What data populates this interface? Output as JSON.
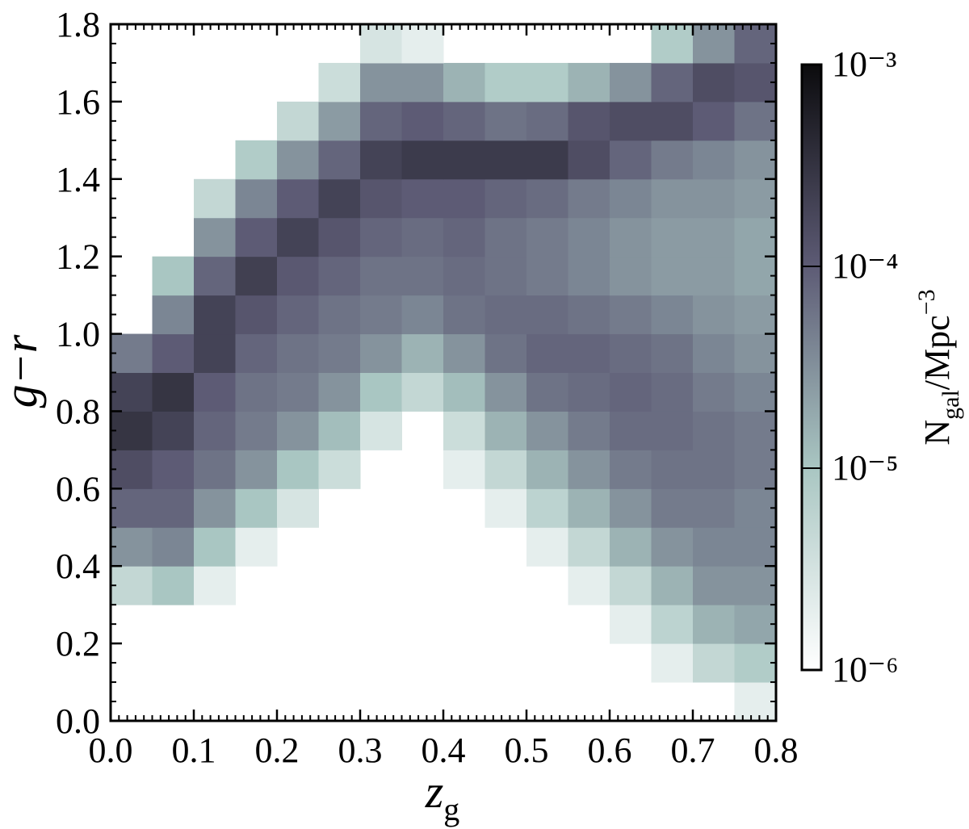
{
  "chart_data": {
    "type": "heatmap",
    "xlabel": {
      "text": "z",
      "sub": "g"
    },
    "ylabel": "g−r",
    "colorbar_label": {
      "main": "N",
      "sub": "gal",
      "mid": "/Mpc",
      "sup": "−3"
    },
    "x_bins": [
      0,
      0.05,
      0.1,
      0.15,
      0.2,
      0.25,
      0.3,
      0.35,
      0.4,
      0.45,
      0.5,
      0.55,
      0.6,
      0.65,
      0.7,
      0.75,
      0.8
    ],
    "y_bins": [
      0,
      0.1,
      0.2,
      0.3,
      0.4,
      0.5,
      0.6,
      0.7,
      0.8,
      0.9,
      1.0,
      1.1,
      1.2,
      1.3,
      1.4,
      1.5,
      1.6,
      1.7,
      1.8
    ],
    "values": [
      [
        null,
        null,
        null,
        null,
        null,
        null,
        null,
        null,
        null,
        null,
        null,
        null,
        null,
        null,
        null,
        2e-06
      ],
      [
        null,
        null,
        null,
        null,
        null,
        null,
        null,
        null,
        null,
        null,
        null,
        null,
        null,
        2e-06,
        5e-06,
        8e-06
      ],
      [
        null,
        null,
        null,
        null,
        null,
        null,
        null,
        null,
        null,
        null,
        null,
        null,
        2e-06,
        6e-06,
        1.5e-05,
        2e-05
      ],
      [
        5e-06,
        1e-05,
        2e-06,
        null,
        null,
        null,
        null,
        null,
        null,
        null,
        null,
        2e-06,
        5e-06,
        1.5e-05,
        3e-05,
        3e-05
      ],
      [
        3e-05,
        4e-05,
        1e-05,
        2e-06,
        null,
        null,
        null,
        null,
        null,
        null,
        2e-06,
        5e-06,
        1.5e-05,
        3e-05,
        4e-05,
        4e-05
      ],
      [
        8e-05,
        8e-05,
        3e-05,
        1e-05,
        3e-06,
        null,
        null,
        null,
        null,
        2e-06,
        6e-06,
        1.5e-05,
        3e-05,
        5e-05,
        5e-05,
        4e-05
      ],
      [
        0.00015,
        0.0001,
        6e-05,
        3e-05,
        1e-05,
        4e-06,
        null,
        null,
        2e-06,
        5e-06,
        1.5e-05,
        3e-05,
        5e-05,
        6e-05,
        6e-05,
        5e-05
      ],
      [
        0.0003,
        0.0002,
        8e-05,
        5e-05,
        3e-05,
        1.2e-05,
        3e-06,
        null,
        4e-06,
        1.5e-05,
        3e-05,
        5e-05,
        7e-05,
        7e-05,
        6e-05,
        5e-05
      ],
      [
        0.0002,
        0.0003,
        0.0001,
        6e-05,
        5e-05,
        3e-05,
        1e-05,
        5e-06,
        1.2e-05,
        3e-05,
        6e-05,
        7e-05,
        8e-05,
        7e-05,
        5e-05,
        4e-05
      ],
      [
        5e-05,
        0.0001,
        0.0002,
        8e-05,
        6e-05,
        5e-05,
        3e-05,
        1.5e-05,
        3e-05,
        6e-05,
        8e-05,
        8e-05,
        7e-05,
        6e-05,
        4e-05,
        3e-05
      ],
      [
        null,
        4e-05,
        0.0002,
        0.00012,
        8e-05,
        6e-05,
        5e-05,
        4e-05,
        6e-05,
        7e-05,
        7e-05,
        6e-05,
        5e-05,
        4e-05,
        3e-05,
        2.5e-05
      ],
      [
        null,
        1e-05,
        8e-05,
        0.00022,
        0.00011,
        8e-05,
        6e-05,
        6e-05,
        7e-05,
        6e-05,
        5e-05,
        4e-05,
        3e-05,
        2.5e-05,
        2.5e-05,
        2e-05
      ],
      [
        null,
        null,
        3e-05,
        0.0001,
        0.0002,
        0.00012,
        8e-05,
        7e-05,
        8e-05,
        6e-05,
        5e-05,
        4e-05,
        3e-05,
        2.5e-05,
        2.5e-05,
        2e-05
      ],
      [
        null,
        null,
        5e-06,
        4e-05,
        0.0001,
        0.0002,
        0.00012,
        0.0001,
        0.0001,
        8e-05,
        7e-05,
        5e-05,
        4e-05,
        3e-05,
        3e-05,
        2.5e-05
      ],
      [
        null,
        null,
        null,
        8e-06,
        3e-05,
        8e-05,
        0.0002,
        0.00025,
        0.00025,
        0.00025,
        0.00025,
        0.00015,
        8e-05,
        5e-05,
        4e-05,
        3e-05
      ],
      [
        null,
        null,
        null,
        null,
        5e-06,
        2.5e-05,
        8e-05,
        0.0001,
        8e-05,
        6e-05,
        7e-05,
        0.00012,
        0.00015,
        0.00015,
        0.0001,
        6e-05
      ],
      [
        null,
        null,
        null,
        null,
        null,
        4e-06,
        3e-05,
        3e-05,
        1.5e-05,
        8e-06,
        8e-06,
        1.5e-05,
        3e-05,
        8e-05,
        0.00015,
        0.00012
      ],
      [
        null,
        null,
        null,
        null,
        null,
        null,
        3e-06,
        2e-06,
        null,
        null,
        null,
        null,
        null,
        8e-06,
        3e-05,
        8e-05
      ]
    ],
    "xlim": [
      0,
      0.8
    ],
    "ylim": [
      0,
      1.8
    ],
    "xticks": [
      {
        "value": 0,
        "label": "0.0"
      },
      0.1,
      0.2,
      0.3,
      0.4,
      0.5,
      0.6,
      0.7,
      0.8
    ],
    "yticks": [
      {
        "value": 0,
        "label": "0.0"
      },
      0.2,
      0.4,
      0.6,
      0.8,
      {
        "value": 1,
        "label": "1.0"
      },
      1.2,
      1.4,
      1.6,
      1.8
    ],
    "x_minor_step": 0.01,
    "y_minor_step": 0.05,
    "clim": [
      1e-06,
      0.001
    ],
    "color_log": true,
    "colormap": [
      "#ffffff",
      "#a9c6c2",
      "#5d5b75",
      "#0b0b0d"
    ],
    "cticks": [
      {
        "value": 0.001,
        "label": "10⁻³"
      },
      {
        "value": 0.0001,
        "label": "10⁻⁴"
      },
      {
        "value": 1e-05,
        "label": "10⁻⁵"
      },
      {
        "value": 1e-06,
        "label": "10⁻⁶"
      }
    ]
  }
}
